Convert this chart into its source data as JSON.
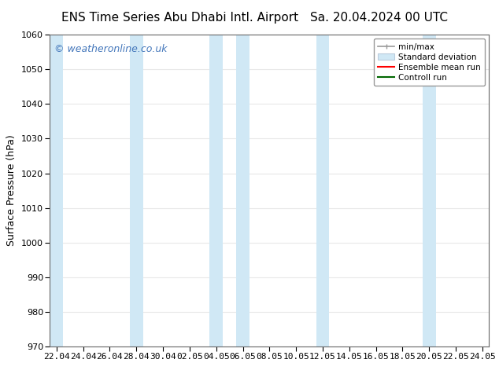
{
  "title_left": "ENS Time Series Abu Dhabi Intl. Airport",
  "title_right": "Sa. 20.04.2024 00 UTC",
  "ylabel": "Surface Pressure (hPa)",
  "ylim": [
    970,
    1060
  ],
  "yticks": [
    970,
    980,
    990,
    1000,
    1010,
    1020,
    1030,
    1040,
    1050,
    1060
  ],
  "x_tick_labels": [
    "22.04",
    "24.04",
    "26.04",
    "28.04",
    "30.04",
    "02.05",
    "04.05",
    "06.05",
    "08.05",
    "10.05",
    "12.05",
    "14.05",
    "16.05",
    "18.05",
    "20.05",
    "22.05",
    "24.05"
  ],
  "x_tick_positions": [
    0,
    2,
    4,
    6,
    8,
    10,
    12,
    14,
    16,
    18,
    20,
    22,
    24,
    26,
    28,
    30,
    32
  ],
  "xlim": [
    -0.5,
    32.5
  ],
  "shaded_bands": [
    {
      "x_start": -0.5,
      "x_end": 0.5
    },
    {
      "x_start": 5.5,
      "x_end": 6.5
    },
    {
      "x_start": 11.5,
      "x_end": 12.5
    },
    {
      "x_start": 13.5,
      "x_end": 14.5
    },
    {
      "x_start": 19.5,
      "x_end": 20.5
    },
    {
      "x_start": 27.5,
      "x_end": 28.5
    }
  ],
  "band_color": "#d0e8f5",
  "watermark_text": "© weatheronline.co.uk",
  "watermark_color": "#4477bb",
  "legend_labels": [
    "min/max",
    "Standard deviation",
    "Ensemble mean run",
    "Controll run"
  ],
  "legend_line_colors": [
    "#999999",
    "#bbccdd",
    "#ff0000",
    "#006600"
  ],
  "background_color": "#ffffff",
  "plot_bg_color": "#ffffff",
  "grid_color": "#cccccc",
  "title_fontsize": 11,
  "tick_fontsize": 8,
  "ylabel_fontsize": 9,
  "watermark_fontsize": 9
}
